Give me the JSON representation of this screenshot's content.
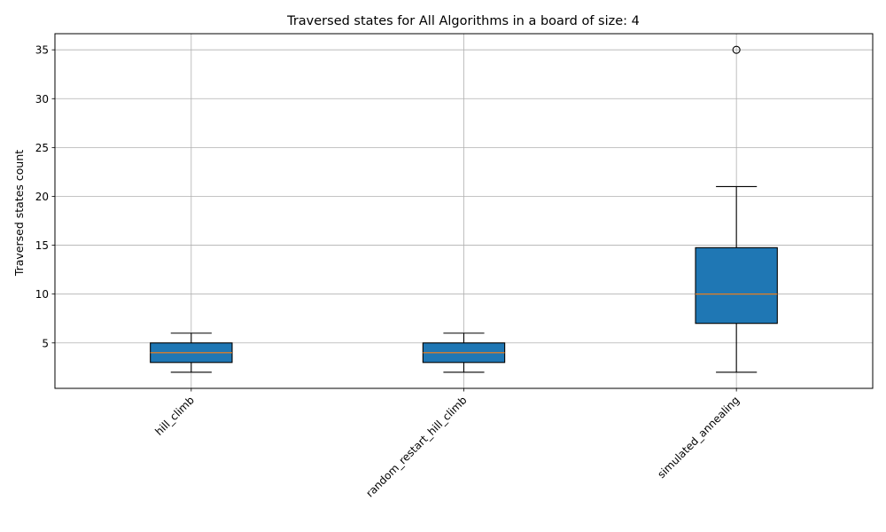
{
  "chart_data": {
    "type": "box",
    "title": "Traversed states for All Algorithms in a board of size: 4",
    "xlabel": "",
    "ylabel": "Traversed states count",
    "ylim": [
      0.35,
      36.65
    ],
    "yticks": [
      5,
      10,
      15,
      20,
      25,
      30,
      35
    ],
    "grid": true,
    "box_color": "#1f77b4",
    "median_color": "#ff7f0e",
    "categories": [
      "hill_climb",
      "random_restart_hill_climb",
      "simulated_annealing"
    ],
    "boxes": [
      {
        "whisker_low": 2,
        "q1": 3,
        "median": 4,
        "q3": 5,
        "whisker_high": 6,
        "outliers": []
      },
      {
        "whisker_low": 2,
        "q1": 3,
        "median": 4,
        "q3": 5,
        "whisker_high": 6,
        "outliers": []
      },
      {
        "whisker_low": 2,
        "q1": 7,
        "median": 10,
        "q3": 14.75,
        "whisker_high": 21,
        "outliers": [
          35
        ]
      }
    ]
  }
}
